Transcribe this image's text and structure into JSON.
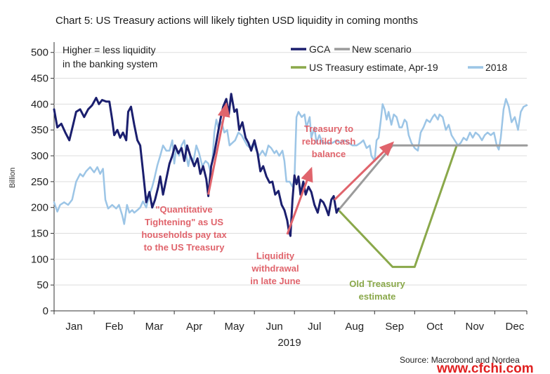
{
  "chart_data": {
    "type": "line",
    "title": "Chart 5: US Treasury actions will likely tighten USD liquidity in coming months",
    "ylabel": "Billion",
    "xlabel": "2019",
    "ylim": [
      0,
      520
    ],
    "yticks": [
      0,
      50,
      100,
      150,
      200,
      250,
      300,
      350,
      400,
      450,
      500
    ],
    "months": [
      "Jan",
      "Feb",
      "Mar",
      "Apr",
      "May",
      "Jun",
      "Jul",
      "Aug",
      "Sep",
      "Oct",
      "Nov",
      "Dec"
    ],
    "note": [
      "Higher = less liquidity",
      "in the banking system"
    ],
    "legend": {
      "gca": "GCA",
      "new": "New scenario",
      "est": "US Treasury estimate, Apr-19",
      "y2018": "2018"
    },
    "colors": {
      "gca": "#1b1f6e",
      "new": "#9b9b9b",
      "est": "#8aa84a",
      "y2018": "#9cc5e6",
      "red": "#e0646c"
    },
    "series": [
      {
        "key": "gca",
        "name": "GCA",
        "points": [
          [
            0.0,
            390
          ],
          [
            0.08,
            355
          ],
          [
            0.18,
            362
          ],
          [
            0.28,
            345
          ],
          [
            0.38,
            330
          ],
          [
            0.48,
            362
          ],
          [
            0.55,
            385
          ],
          [
            0.65,
            390
          ],
          [
            0.75,
            375
          ],
          [
            0.85,
            390
          ],
          [
            0.95,
            398
          ],
          [
            1.05,
            412
          ],
          [
            1.12,
            400
          ],
          [
            1.2,
            408
          ],
          [
            1.3,
            405
          ],
          [
            1.38,
            405
          ],
          [
            1.45,
            370
          ],
          [
            1.5,
            340
          ],
          [
            1.58,
            350
          ],
          [
            1.65,
            335
          ],
          [
            1.72,
            345
          ],
          [
            1.8,
            330
          ],
          [
            1.85,
            385
          ],
          [
            1.92,
            395
          ],
          [
            2.0,
            360
          ],
          [
            2.08,
            330
          ],
          [
            2.15,
            320
          ],
          [
            2.22,
            270
          ],
          [
            2.3,
            210
          ],
          [
            2.38,
            230
          ],
          [
            2.45,
            200
          ],
          [
            2.52,
            215
          ],
          [
            2.6,
            240
          ],
          [
            2.65,
            260
          ],
          [
            2.72,
            225
          ],
          [
            2.8,
            255
          ],
          [
            2.88,
            285
          ],
          [
            2.95,
            300
          ],
          [
            3.02,
            320
          ],
          [
            3.1,
            305
          ],
          [
            3.18,
            315
          ],
          [
            3.25,
            290
          ],
          [
            3.32,
            320
          ],
          [
            3.4,
            300
          ],
          [
            3.5,
            280
          ],
          [
            3.58,
            295
          ],
          [
            3.65,
            265
          ],
          [
            3.72,
            280
          ],
          [
            3.8,
            255
          ],
          [
            3.85,
            222
          ],
          [
            3.92,
            280
          ],
          [
            4.0,
            305
          ],
          [
            4.08,
            340
          ],
          [
            4.15,
            370
          ],
          [
            4.22,
            395
          ],
          [
            4.3,
            410
          ],
          [
            4.36,
            380
          ],
          [
            4.42,
            420
          ],
          [
            4.5,
            385
          ],
          [
            4.56,
            390
          ],
          [
            4.62,
            350
          ],
          [
            4.7,
            365
          ],
          [
            4.78,
            335
          ],
          [
            4.85,
            325
          ],
          [
            4.92,
            310
          ],
          [
            5.0,
            330
          ],
          [
            5.08,
            305
          ],
          [
            5.15,
            270
          ],
          [
            5.22,
            280
          ],
          [
            5.3,
            260
          ],
          [
            5.38,
            248
          ],
          [
            5.45,
            250
          ],
          [
            5.52,
            225
          ],
          [
            5.6,
            232
          ],
          [
            5.68,
            205
          ],
          [
            5.75,
            195
          ],
          [
            5.82,
            175
          ],
          [
            5.86,
            155
          ],
          [
            5.9,
            145
          ],
          [
            5.95,
            215
          ],
          [
            6.0,
            262
          ],
          [
            6.05,
            245
          ],
          [
            6.1,
            260
          ],
          [
            6.15,
            225
          ],
          [
            6.22,
            250
          ],
          [
            6.28,
            225
          ],
          [
            6.35,
            240
          ],
          [
            6.42,
            230
          ],
          [
            6.5,
            205
          ],
          [
            6.58,
            190
          ],
          [
            6.65,
            215
          ],
          [
            6.72,
            210
          ],
          [
            6.78,
            200
          ],
          [
            6.85,
            185
          ],
          [
            6.92,
            215
          ],
          [
            6.98,
            222
          ],
          [
            7.05,
            190
          ],
          [
            7.1,
            198
          ]
        ]
      },
      {
        "key": "y2018",
        "name": "2018",
        "points": [
          [
            0.0,
            210
          ],
          [
            0.08,
            192
          ],
          [
            0.15,
            205
          ],
          [
            0.25,
            210
          ],
          [
            0.35,
            205
          ],
          [
            0.45,
            215
          ],
          [
            0.55,
            250
          ],
          [
            0.65,
            265
          ],
          [
            0.72,
            260
          ],
          [
            0.8,
            270
          ],
          [
            0.9,
            278
          ],
          [
            1.0,
            268
          ],
          [
            1.08,
            278
          ],
          [
            1.15,
            265
          ],
          [
            1.22,
            275
          ],
          [
            1.28,
            215
          ],
          [
            1.35,
            198
          ],
          [
            1.45,
            205
          ],
          [
            1.55,
            198
          ],
          [
            1.62,
            205
          ],
          [
            1.7,
            185
          ],
          [
            1.75,
            168
          ],
          [
            1.82,
            205
          ],
          [
            1.88,
            190
          ],
          [
            1.95,
            195
          ],
          [
            2.0,
            190
          ],
          [
            2.08,
            195
          ],
          [
            2.15,
            200
          ],
          [
            2.22,
            212
          ],
          [
            2.3,
            200
          ],
          [
            2.38,
            225
          ],
          [
            2.45,
            240
          ],
          [
            2.5,
            255
          ],
          [
            2.58,
            282
          ],
          [
            2.65,
            300
          ],
          [
            2.72,
            320
          ],
          [
            2.8,
            310
          ],
          [
            2.88,
            310
          ],
          [
            2.95,
            330
          ],
          [
            3.0,
            285
          ],
          [
            3.05,
            315
          ],
          [
            3.12,
            300
          ],
          [
            3.18,
            320
          ],
          [
            3.25,
            330
          ],
          [
            3.3,
            300
          ],
          [
            3.35,
            280
          ],
          [
            3.4,
            300
          ],
          [
            3.48,
            290
          ],
          [
            3.55,
            320
          ],
          [
            3.62,
            305
          ],
          [
            3.7,
            280
          ],
          [
            3.78,
            290
          ],
          [
            3.85,
            285
          ],
          [
            3.9,
            270
          ],
          [
            3.95,
            290
          ],
          [
            4.0,
            345
          ],
          [
            4.05,
            370
          ],
          [
            4.1,
            355
          ],
          [
            4.18,
            365
          ],
          [
            4.25,
            345
          ],
          [
            4.32,
            350
          ],
          [
            4.38,
            320
          ],
          [
            4.45,
            325
          ],
          [
            4.52,
            330
          ],
          [
            4.6,
            345
          ],
          [
            4.68,
            340
          ],
          [
            4.75,
            330
          ],
          [
            4.82,
            320
          ],
          [
            4.9,
            315
          ],
          [
            4.98,
            325
          ],
          [
            5.05,
            310
          ],
          [
            5.12,
            300
          ],
          [
            5.2,
            310
          ],
          [
            5.28,
            300
          ],
          [
            5.35,
            320
          ],
          [
            5.42,
            315
          ],
          [
            5.5,
            305
          ],
          [
            5.55,
            310
          ],
          [
            5.62,
            300
          ],
          [
            5.7,
            310
          ],
          [
            5.75,
            290
          ],
          [
            5.8,
            250
          ],
          [
            5.88,
            250
          ],
          [
            5.95,
            240
          ],
          [
            6.0,
            255
          ],
          [
            6.05,
            375
          ],
          [
            6.1,
            385
          ],
          [
            6.18,
            375
          ],
          [
            6.25,
            380
          ],
          [
            6.3,
            355
          ],
          [
            6.38,
            375
          ],
          [
            6.42,
            335
          ],
          [
            6.5,
            355
          ],
          [
            6.55,
            325
          ],
          [
            6.62,
            340
          ],
          [
            6.7,
            325
          ],
          [
            6.78,
            325
          ],
          [
            6.88,
            325
          ],
          [
            6.95,
            325
          ],
          [
            7.05,
            330
          ],
          [
            7.15,
            325
          ],
          [
            7.25,
            330
          ],
          [
            7.35,
            325
          ],
          [
            7.45,
            320
          ],
          [
            7.55,
            320
          ],
          [
            7.65,
            325
          ],
          [
            7.72,
            330
          ],
          [
            7.8,
            315
          ],
          [
            7.88,
            320
          ],
          [
            7.92,
            300
          ],
          [
            8.0,
            290
          ],
          [
            8.05,
            330
          ],
          [
            8.1,
            335
          ],
          [
            8.15,
            365
          ],
          [
            8.2,
            400
          ],
          [
            8.25,
            390
          ],
          [
            8.3,
            370
          ],
          [
            8.35,
            385
          ],
          [
            8.42,
            360
          ],
          [
            8.48,
            380
          ],
          [
            8.55,
            375
          ],
          [
            8.62,
            355
          ],
          [
            8.68,
            355
          ],
          [
            8.75,
            370
          ],
          [
            8.8,
            365
          ],
          [
            8.85,
            340
          ],
          [
            8.92,
            325
          ],
          [
            9.0,
            315
          ],
          [
            9.08,
            310
          ],
          [
            9.15,
            345
          ],
          [
            9.22,
            355
          ],
          [
            9.3,
            370
          ],
          [
            9.38,
            365
          ],
          [
            9.45,
            375
          ],
          [
            9.5,
            380
          ],
          [
            9.58,
            370
          ],
          [
            9.62,
            380
          ],
          [
            9.7,
            375
          ],
          [
            9.78,
            350
          ],
          [
            9.85,
            360
          ],
          [
            9.92,
            340
          ],
          [
            10.0,
            330
          ],
          [
            10.08,
            320
          ],
          [
            10.15,
            325
          ],
          [
            10.22,
            335
          ],
          [
            10.3,
            330
          ],
          [
            10.38,
            345
          ],
          [
            10.45,
            335
          ],
          [
            10.52,
            345
          ],
          [
            10.6,
            340
          ],
          [
            10.68,
            330
          ],
          [
            10.75,
            340
          ],
          [
            10.82,
            345
          ],
          [
            10.9,
            340
          ],
          [
            10.98,
            345
          ],
          [
            11.05,
            320
          ],
          [
            11.1,
            312
          ],
          [
            11.15,
            335
          ],
          [
            11.22,
            390
          ],
          [
            11.28,
            410
          ],
          [
            11.35,
            395
          ],
          [
            11.42,
            365
          ],
          [
            11.5,
            375
          ],
          [
            11.58,
            350
          ],
          [
            11.65,
            385
          ],
          [
            11.72,
            395
          ],
          [
            11.8,
            398
          ]
        ]
      },
      {
        "key": "new",
        "name": "New scenario",
        "points": [
          [
            7.1,
            195
          ],
          [
            8.45,
            320
          ],
          [
            11.8,
            320
          ]
        ]
      },
      {
        "key": "est",
        "name": "US Treasury estimate, Apr-19",
        "points": [
          [
            7.1,
            195
          ],
          [
            8.45,
            85
          ],
          [
            9.0,
            85
          ],
          [
            10.05,
            320
          ]
        ]
      }
    ],
    "annotations": {
      "qt": [
        "\"Quantitative",
        "Tightening\" as US",
        "households pay tax",
        "to the US Treasury"
      ],
      "june": [
        "Liquidity",
        "withdrawal",
        "in late June"
      ],
      "rebuild": [
        "Treasury to",
        "rebuild cash",
        "balance"
      ],
      "old": [
        "Old Treasury",
        "estimate"
      ]
    },
    "arrows": [
      {
        "from": [
          3.85,
          225
        ],
        "to": [
          4.3,
          400
        ]
      },
      {
        "from": [
          5.82,
          148
        ],
        "to": [
          6.42,
          275
        ]
      },
      {
        "from": [
          7.0,
          215
        ],
        "to": [
          8.45,
          325
        ]
      }
    ],
    "source": "Source: Macrobond and Nordea",
    "watermark": "www.cfchi.com"
  }
}
